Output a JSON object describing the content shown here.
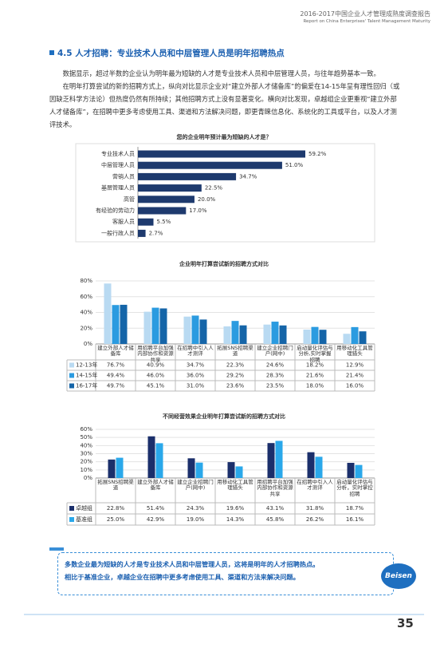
{
  "header": {
    "title": "2016-2017中国企业人才管理成熟度调查报告",
    "subtitle": "Report on China Enterprises' Talent Management Maturity"
  },
  "section_title": "4.5 人才招聘：专业技术人员和中层管理人员是明年招聘热点",
  "paragraphs": [
    "数据显示，超过半数的企业认为明年最为短缺的人才是专业技术人员和中层管理人员，与往年趋势基本一致。",
    "在明年打算尝试的新的招聘方式上，纵向对比显示企业对“建立外部人才储备库”的偏爱在14-15年呈有理性回归（或因缺乏科学方法论）但热度仍然有所持续；其他招聘方式上没有显著变化。横向对比发现，卓越组企业更重视“建立外部人才储备库”，在招聘中更多考虑使用工具、渠道和方法解决问题，即更青睐信息化、系统化的工具或平台，以及人才测评技术。"
  ],
  "chart_data": [
    {
      "type": "bar",
      "orientation": "horizontal",
      "title": "您的企业明年预计最为短缺的人才是？",
      "categories": [
        "专业技术人员",
        "中层管理人员",
        "营销人员",
        "基层管理人员",
        "高管",
        "有经验的劳动力",
        "客服人员",
        "一般行政人员"
      ],
      "values": [
        59.2,
        51.0,
        34.7,
        22.5,
        20.0,
        17.0,
        5.5,
        2.7
      ],
      "value_labels": [
        "59.2%",
        "51.0%",
        "34.7%",
        "22.5%",
        "20.0%",
        "17.0%",
        "5.5%",
        "2.7%"
      ],
      "color": "#1e3a6e"
    },
    {
      "type": "bar",
      "orientation": "vertical",
      "title": "企业明年打算尝试新的招聘方式对比",
      "categories": [
        "建立外部人才储备库",
        "用招聘平台加强内部协作和资源共享",
        "在招聘中引入人才测评",
        "拓展SNS招聘渠道",
        "建立企业招聘门户(网中)",
        "启动量化评估与分析,实时掌握招聘",
        "用移动化工具管理猎头"
      ],
      "series": [
        {
          "name": "12-13年",
          "color": "#b9daf2",
          "values": [
            76.7,
            40.9,
            34.7,
            22.3,
            24.6,
            18.2,
            12.9
          ],
          "value_labels": [
            "76.7%",
            "40.9%",
            "34.7%",
            "22.3%",
            "24.6%",
            "18.2%",
            "12.9%"
          ]
        },
        {
          "name": "14-15年",
          "color": "#2b9be0",
          "values": [
            49.4,
            46.0,
            36.0,
            29.2,
            28.3,
            21.6,
            21.4
          ],
          "value_labels": [
            "49.4%",
            "46.0%",
            "36.0%",
            "29.2%",
            "28.3%",
            "21.6%",
            "21.4%"
          ]
        },
        {
          "name": "16-17年",
          "color": "#1565a8",
          "values": [
            49.7,
            45.1,
            31.0,
            23.6,
            23.5,
            18.0,
            16.0
          ],
          "value_labels": [
            "49.7%",
            "45.1%",
            "31.0%",
            "23.6%",
            "23.5%",
            "18.0%",
            "16.0%"
          ]
        }
      ],
      "ylim": [
        0,
        80
      ],
      "yticks": [
        {
          "value": 0,
          "label": "0%"
        },
        {
          "value": 20,
          "label": "20%"
        },
        {
          "value": 40,
          "label": "40%"
        },
        {
          "value": 60,
          "label": "60%"
        },
        {
          "value": 80,
          "label": "80%"
        }
      ],
      "grid": true
    },
    {
      "type": "bar",
      "orientation": "vertical",
      "title": "不同经营效果企业明年打算尝试新的招聘方式对比",
      "categories": [
        "拓展SNS招聘渠道",
        "建立外部人才储备库",
        "建立企业招聘门户(网中)",
        "用移动化工具管理猎头",
        "用招聘平台加强内部协作和资源共享",
        "在招聘中引入人才测评",
        "启动量化评估与分析，实时掌控招聘"
      ],
      "series": [
        {
          "name": "卓越组",
          "color": "#1b2f6b",
          "values": [
            22.8,
            51.4,
            24.3,
            19.6,
            43.1,
            31.8,
            18.7
          ],
          "value_labels": [
            "22.8%",
            "51.4%",
            "24.3%",
            "19.6%",
            "43.1%",
            "31.8%",
            "18.7%"
          ]
        },
        {
          "name": "基准组",
          "color": "#2aa8ea",
          "values": [
            25.0,
            42.9,
            19.0,
            14.3,
            45.8,
            26.2,
            16.1
          ],
          "value_labels": [
            "25.0%",
            "42.9%",
            "19.0%",
            "14.3%",
            "45.8%",
            "26.2%",
            "16.1%"
          ]
        }
      ],
      "ylim": [
        0,
        60
      ],
      "yticks": [
        {
          "value": 0,
          "label": "0%"
        },
        {
          "value": 10,
          "label": "10%"
        },
        {
          "value": 20,
          "label": "20%"
        },
        {
          "value": 30,
          "label": "30%"
        },
        {
          "value": 40,
          "label": "40%"
        },
        {
          "value": 50,
          "label": "50%"
        },
        {
          "value": 60,
          "label": "60%"
        }
      ],
      "grid": true
    }
  ],
  "callout": [
    "多数企业最为短缺的人才是专业技术人员和中层管理人员，这将是明年的人才招聘热点。",
    "相比于基准企业，卓越企业在招聘中更多考虑使用工具、渠道和方法来解决问题。"
  ],
  "logo": "Beisen",
  "page_number": "35"
}
